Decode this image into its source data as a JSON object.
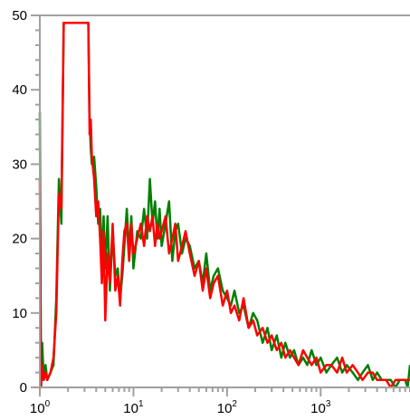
{
  "chart_data": {
    "type": "line",
    "title": "",
    "xlabel": "",
    "ylabel": "",
    "x_scale": "log",
    "xlim": [
      1,
      9000
    ],
    "ylim": [
      0,
      50
    ],
    "grid": false,
    "legend": "none",
    "y_ticks": [
      {
        "value": 0,
        "label": "0"
      },
      {
        "value": 10,
        "label": "10"
      },
      {
        "value": 20,
        "label": "20"
      },
      {
        "value": 30,
        "label": "30"
      },
      {
        "value": 40,
        "label": "40"
      },
      {
        "value": 50,
        "label": "50"
      }
    ],
    "x_ticks": [
      {
        "value": 1,
        "base": "10",
        "exp": "0"
      },
      {
        "value": 10,
        "base": "10",
        "exp": "1"
      },
      {
        "value": 100,
        "base": "10",
        "exp": "2"
      },
      {
        "value": 1000,
        "base": "10",
        "exp": "3"
      }
    ],
    "colors": {
      "axis": "#a0a0a0",
      "series_green": "#008000",
      "series_red": "#ff0000"
    },
    "series": [
      {
        "color": "#008000",
        "x": [
          1.0,
          1.03,
          1.06,
          1.1,
          1.15,
          1.2,
          1.3,
          1.4,
          1.5,
          1.6,
          1.7,
          1.8,
          1.9,
          2.0,
          2.3,
          2.6,
          3.0,
          3.3,
          3.4,
          3.5,
          3.6,
          3.8,
          4.0,
          4.2,
          4.4,
          4.6,
          4.8,
          5.0,
          5.3,
          5.6,
          6.0,
          6.4,
          6.8,
          7.2,
          7.6,
          8.0,
          8.5,
          9.0,
          9.5,
          10,
          11,
          12,
          13,
          14,
          15,
          16,
          17,
          18,
          19,
          20,
          22,
          24,
          26,
          28,
          30,
          33,
          36,
          40,
          45,
          50,
          55,
          60,
          66,
          72,
          80,
          90,
          100,
          110,
          120,
          135,
          150,
          170,
          190,
          210,
          240,
          270,
          300,
          340,
          380,
          420,
          470,
          520,
          580,
          650,
          720,
          800,
          900,
          1000,
          1150,
          1300,
          1500,
          1700,
          1900,
          2200,
          2500,
          2800,
          3200,
          3600,
          4000,
          4500,
          5000,
          5600,
          6300,
          7000,
          8000,
          8500,
          9000
        ],
        "values": [
          37,
          0,
          6,
          1,
          3,
          1,
          2,
          3,
          12,
          28,
          22,
          49,
          49,
          49,
          49,
          49,
          49,
          49,
          36,
          32,
          30,
          31,
          27,
          22,
          24,
          17,
          23,
          16,
          23,
          13,
          21,
          15,
          16,
          12,
          15,
          19,
          24,
          18,
          23,
          16,
          21,
          20,
          24,
          20,
          28,
          22,
          25,
          20,
          24,
          19,
          22,
          25,
          17,
          21,
          22,
          18,
          20,
          19,
          16,
          17,
          14,
          18,
          13,
          15,
          16,
          13,
          12,
          11,
          13,
          10,
          11,
          8,
          10,
          9,
          6,
          8,
          5,
          7,
          4,
          6,
          4,
          5,
          3,
          4,
          3,
          5,
          3,
          4,
          2,
          3,
          4,
          2,
          3,
          2,
          1,
          2,
          3,
          1,
          2,
          1,
          1,
          1,
          0,
          1,
          1,
          0,
          3
        ]
      },
      {
        "color": "#ff0000",
        "x": [
          1.0,
          1.03,
          1.06,
          1.1,
          1.15,
          1.2,
          1.3,
          1.4,
          1.5,
          1.6,
          1.7,
          1.8,
          1.9,
          2.0,
          2.3,
          2.6,
          3.0,
          3.3,
          3.4,
          3.5,
          3.6,
          3.8,
          4.0,
          4.2,
          4.4,
          4.6,
          4.8,
          5.0,
          5.3,
          5.6,
          6.0,
          6.4,
          6.8,
          7.2,
          7.6,
          8.0,
          8.5,
          9.0,
          9.5,
          10,
          11,
          12,
          13,
          14,
          15,
          16,
          17,
          18,
          19,
          20,
          22,
          24,
          26,
          28,
          30,
          33,
          36,
          40,
          45,
          50,
          55,
          60,
          66,
          72,
          80,
          90,
          100,
          110,
          120,
          135,
          150,
          170,
          190,
          210,
          240,
          270,
          300,
          340,
          380,
          420,
          470,
          520,
          580,
          650,
          720,
          800,
          900,
          1000,
          1150,
          1300,
          1500,
          1700,
          1900,
          2200,
          2500,
          2800,
          3200,
          3600,
          4000,
          4500,
          5000,
          5600,
          6300,
          7000,
          8000,
          8500,
          9000
        ],
        "values": [
          28,
          0,
          3,
          1,
          2,
          1,
          2,
          4,
          10,
          26,
          24,
          49,
          49,
          49,
          49,
          49,
          49,
          49,
          34,
          36,
          31,
          28,
          23,
          25,
          20,
          14,
          21,
          9,
          18,
          14,
          22,
          13,
          15,
          11,
          17,
          21,
          22,
          17,
          22,
          18,
          20,
          22,
          19,
          23,
          21,
          23,
          19,
          22,
          20,
          21,
          23,
          18,
          20,
          22,
          17,
          19,
          21,
          18,
          15,
          17,
          13,
          16,
          12,
          14,
          15,
          11,
          13,
          10,
          11,
          9,
          12,
          8,
          9,
          7,
          8,
          6,
          7,
          5,
          6,
          4,
          5,
          4,
          3,
          5,
          4,
          3,
          4,
          2,
          3,
          3,
          2,
          4,
          2,
          3,
          2,
          1,
          2,
          2,
          1,
          1,
          1,
          0,
          1,
          1,
          1,
          1,
          1
        ]
      }
    ]
  }
}
